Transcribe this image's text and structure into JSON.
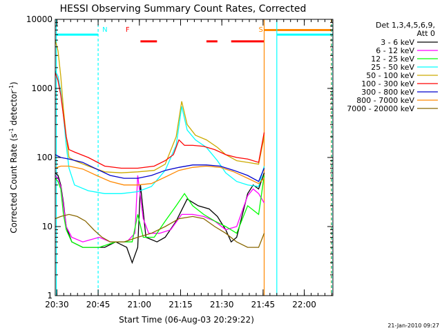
{
  "chart_data": {
    "type": "line",
    "title": "HESSI Observing Summary Count Rates, Corrected",
    "xlabel": "Start Time (06-Aug-03 20:29:22)",
    "ylabel_main": "Corrected Count Rate (s",
    "ylabel_sup1": "-1",
    "ylabel_mid": " detector",
    "ylabel_sup2": "-1",
    "ylabel_end": ")",
    "y_scale": "log",
    "ylim": [
      1,
      10000
    ],
    "xlim_minutes": [
      0,
      101
    ],
    "x_ticks": [
      {
        "label": "20:30",
        "t": 0.6
      },
      {
        "label": "20:45",
        "t": 15.6
      },
      {
        "label": "21:00",
        "t": 30.6
      },
      {
        "label": "21:15",
        "t": 45.6
      },
      {
        "label": "21:30",
        "t": 60.6
      },
      {
        "label": "21:45",
        "t": 75.6
      },
      {
        "label": "22:00",
        "t": 90.6
      }
    ],
    "y_ticks": [
      {
        "label": "1",
        "v": 1
      },
      {
        "label": "10",
        "v": 10
      },
      {
        "label": "100",
        "v": 100
      },
      {
        "label": "1000",
        "v": 1000
      },
      {
        "label": "10000",
        "v": 10000
      }
    ],
    "legend": {
      "header1": "Det 1,3,4,5,6,9,",
      "header2": "Att 0",
      "placement": "right"
    },
    "series": [
      {
        "name": "3 - 6 keV",
        "color": "#000000",
        "points": [
          [
            0,
            60
          ],
          [
            1,
            55
          ],
          [
            2,
            40
          ],
          [
            3,
            22
          ],
          [
            4,
            10
          ],
          [
            6,
            6
          ],
          [
            10,
            5
          ],
          [
            15,
            5
          ],
          [
            18,
            5
          ],
          [
            22,
            6
          ],
          [
            26,
            5
          ],
          [
            28,
            3
          ],
          [
            30,
            5
          ],
          [
            31,
            40
          ],
          [
            33,
            7
          ],
          [
            37,
            6
          ],
          [
            40,
            7
          ],
          [
            44,
            12
          ],
          [
            48,
            25
          ],
          [
            52,
            20
          ],
          [
            56,
            18
          ],
          [
            59,
            14
          ],
          [
            62,
            9
          ],
          [
            64,
            6
          ],
          [
            66,
            7
          ],
          [
            70,
            30
          ],
          [
            72,
            40
          ],
          [
            74,
            35
          ],
          [
            76,
            60
          ]
        ]
      },
      {
        "name": "6 - 12 keV",
        "color": "#ff00ff",
        "points": [
          [
            0,
            55
          ],
          [
            1,
            50
          ],
          [
            2,
            38
          ],
          [
            3,
            20
          ],
          [
            4,
            10
          ],
          [
            6,
            7
          ],
          [
            10,
            6
          ],
          [
            16,
            7
          ],
          [
            20,
            6
          ],
          [
            26,
            6
          ],
          [
            29,
            8
          ],
          [
            30,
            55
          ],
          [
            32,
            13
          ],
          [
            34,
            8
          ],
          [
            38,
            8
          ],
          [
            42,
            9
          ],
          [
            46,
            15
          ],
          [
            50,
            15
          ],
          [
            54,
            14
          ],
          [
            58,
            12
          ],
          [
            62,
            9
          ],
          [
            66,
            10
          ],
          [
            70,
            28
          ],
          [
            72,
            35
          ],
          [
            74,
            30
          ],
          [
            76,
            22
          ]
        ]
      },
      {
        "name": "12 - 25 keV",
        "color": "#00ff00",
        "points": [
          [
            0,
            50
          ],
          [
            1,
            45
          ],
          [
            2,
            35
          ],
          [
            3,
            15
          ],
          [
            4,
            9
          ],
          [
            6,
            6
          ],
          [
            10,
            5
          ],
          [
            16,
            5
          ],
          [
            22,
            6
          ],
          [
            28,
            6
          ],
          [
            30,
            15
          ],
          [
            32,
            7
          ],
          [
            36,
            7
          ],
          [
            40,
            12
          ],
          [
            44,
            20
          ],
          [
            47,
            30
          ],
          [
            50,
            20
          ],
          [
            54,
            15
          ],
          [
            58,
            12
          ],
          [
            62,
            10
          ],
          [
            66,
            8
          ],
          [
            70,
            20
          ],
          [
            74,
            15
          ],
          [
            76,
            55
          ]
        ]
      },
      {
        "name": "25 - 50 keV",
        "color": "#00ffff",
        "points": [
          [
            0,
            1800
          ],
          [
            1,
            1500
          ],
          [
            2,
            900
          ],
          [
            3,
            400
          ],
          [
            4,
            150
          ],
          [
            5,
            70
          ],
          [
            7,
            40
          ],
          [
            12,
            33
          ],
          [
            18,
            30
          ],
          [
            24,
            30
          ],
          [
            30,
            32
          ],
          [
            35,
            38
          ],
          [
            40,
            65
          ],
          [
            44,
            150
          ],
          [
            46,
            550
          ],
          [
            48,
            250
          ],
          [
            51,
            180
          ],
          [
            55,
            140
          ],
          [
            59,
            90
          ],
          [
            62,
            60
          ],
          [
            66,
            45
          ],
          [
            70,
            40
          ],
          [
            74,
            38
          ],
          [
            76,
            75
          ]
        ]
      },
      {
        "name": "50 - 100 keV",
        "color": "#ccaa00",
        "points": [
          [
            0,
            5000
          ],
          [
            1,
            3500
          ],
          [
            2,
            1500
          ],
          [
            3,
            500
          ],
          [
            4,
            200
          ],
          [
            5,
            100
          ],
          [
            7,
            90
          ],
          [
            12,
            75
          ],
          [
            18,
            62
          ],
          [
            24,
            60
          ],
          [
            30,
            62
          ],
          [
            36,
            65
          ],
          [
            40,
            80
          ],
          [
            44,
            200
          ],
          [
            46,
            650
          ],
          [
            48,
            300
          ],
          [
            51,
            210
          ],
          [
            55,
            180
          ],
          [
            59,
            140
          ],
          [
            62,
            110
          ],
          [
            66,
            90
          ],
          [
            70,
            85
          ],
          [
            74,
            80
          ],
          [
            76,
            200
          ]
        ]
      },
      {
        "name": "100 - 300 keV",
        "color": "#ff0000",
        "points": [
          [
            0,
            1700
          ],
          [
            1,
            1300
          ],
          [
            2,
            800
          ],
          [
            3,
            400
          ],
          [
            4,
            200
          ],
          [
            5,
            130
          ],
          [
            7,
            120
          ],
          [
            12,
            100
          ],
          [
            18,
            75
          ],
          [
            24,
            70
          ],
          [
            30,
            70
          ],
          [
            36,
            75
          ],
          [
            40,
            90
          ],
          [
            43,
            110
          ],
          [
            45,
            180
          ],
          [
            47,
            150
          ],
          [
            50,
            150
          ],
          [
            54,
            145
          ],
          [
            58,
            130
          ],
          [
            62,
            110
          ],
          [
            66,
            100
          ],
          [
            70,
            95
          ],
          [
            74,
            85
          ],
          [
            76,
            230
          ]
        ]
      },
      {
        "name": "300 - 800 keV",
        "color": "#0000cc",
        "points": [
          [
            0,
            110
          ],
          [
            2,
            100
          ],
          [
            5,
            95
          ],
          [
            10,
            85
          ],
          [
            15,
            68
          ],
          [
            20,
            55
          ],
          [
            25,
            50
          ],
          [
            30,
            50
          ],
          [
            35,
            55
          ],
          [
            40,
            65
          ],
          [
            45,
            72
          ],
          [
            50,
            78
          ],
          [
            55,
            78
          ],
          [
            60,
            75
          ],
          [
            65,
            65
          ],
          [
            70,
            55
          ],
          [
            74,
            45
          ],
          [
            76,
            70
          ]
        ]
      },
      {
        "name": "800 - 7000 keV",
        "color": "#ff8800",
        "points": [
          [
            0,
            70
          ],
          [
            2,
            75
          ],
          [
            5,
            75
          ],
          [
            10,
            68
          ],
          [
            15,
            55
          ],
          [
            20,
            45
          ],
          [
            25,
            40
          ],
          [
            30,
            40
          ],
          [
            35,
            42
          ],
          [
            40,
            52
          ],
          [
            45,
            65
          ],
          [
            50,
            72
          ],
          [
            55,
            75
          ],
          [
            60,
            72
          ],
          [
            65,
            62
          ],
          [
            70,
            50
          ],
          [
            74,
            42
          ],
          [
            76,
            50
          ]
        ]
      },
      {
        "name": "7000 - 20000 keV",
        "color": "#886600",
        "points": [
          [
            0,
            13
          ],
          [
            2,
            14
          ],
          [
            5,
            15
          ],
          [
            8,
            14
          ],
          [
            11,
            12
          ],
          [
            14,
            9
          ],
          [
            17,
            7
          ],
          [
            20,
            6
          ],
          [
            25,
            6
          ],
          [
            30,
            7
          ],
          [
            35,
            8
          ],
          [
            40,
            10
          ],
          [
            45,
            13
          ],
          [
            50,
            14
          ],
          [
            54,
            13
          ],
          [
            58,
            10
          ],
          [
            62,
            8
          ],
          [
            66,
            6
          ],
          [
            70,
            5
          ],
          [
            74,
            5
          ],
          [
            76,
            8
          ]
        ]
      }
    ],
    "annotations": [
      {
        "label": "N",
        "t": 15.6,
        "color": "#00ffff"
      },
      {
        "label": "F",
        "t": 28.6,
        "color": "#ff0000"
      },
      {
        "label": "S",
        "t": 76.0,
        "color": "#ff8800"
      }
    ],
    "flags": {
      "night": {
        "color": "#00ffff",
        "level": 6000,
        "spans": [
          [
            0.4,
            15.6
          ],
          [
            80.6,
            101
          ]
        ]
      },
      "flare": {
        "color": "#ff0000",
        "level": 4800,
        "spans": [
          [
            31,
            37
          ],
          [
            55,
            59
          ],
          [
            64,
            76
          ]
        ]
      },
      "saa": {
        "color": "#ff8800",
        "level": 7000,
        "spans": [
          [
            76,
            101
          ]
        ]
      }
    },
    "vlines": [
      {
        "t": 0.4,
        "color": "#00ffff",
        "style": "solid"
      },
      {
        "t": 15.6,
        "color": "#00ffff",
        "style": "dashed"
      },
      {
        "t": 76.0,
        "color": "#ff8800",
        "style": "solid"
      },
      {
        "t": 80.6,
        "color": "#00ffff",
        "style": "solid"
      },
      {
        "t": 100.4,
        "color": "#ff8800",
        "style": "dashed"
      },
      {
        "t": 100.6,
        "color": "#00ffff",
        "style": "dashed"
      }
    ],
    "grid": false
  },
  "footer": {
    "date": "21-Jan-2010 09:27"
  }
}
